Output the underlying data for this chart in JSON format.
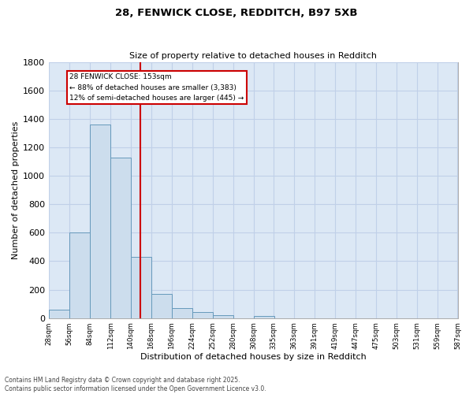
{
  "title1": "28, FENWICK CLOSE, REDDITCH, B97 5XB",
  "title2": "Size of property relative to detached houses in Redditch",
  "xlabel": "Distribution of detached houses by size in Redditch",
  "ylabel": "Number of detached properties",
  "bar_left_edges": [
    28,
    56,
    84,
    112,
    140,
    168,
    196,
    224,
    252,
    280,
    308,
    335,
    363,
    391,
    419,
    447,
    475,
    503,
    531,
    559
  ],
  "bar_heights": [
    60,
    600,
    1360,
    1130,
    430,
    170,
    70,
    40,
    20,
    0,
    15,
    0,
    0,
    0,
    0,
    0,
    0,
    0,
    0,
    0
  ],
  "bin_width": 28,
  "bar_color": "#ccdded",
  "bar_edge_color": "#6699bb",
  "vline_x": 153,
  "vline_color": "#cc0000",
  "ylim": [
    0,
    1800
  ],
  "yticks": [
    0,
    200,
    400,
    600,
    800,
    1000,
    1200,
    1400,
    1600,
    1800
  ],
  "xtick_labels": [
    "28sqm",
    "56sqm",
    "84sqm",
    "112sqm",
    "140sqm",
    "168sqm",
    "196sqm",
    "224sqm",
    "252sqm",
    "280sqm",
    "308sqm",
    "335sqm",
    "363sqm",
    "391sqm",
    "419sqm",
    "447sqm",
    "475sqm",
    "503sqm",
    "531sqm",
    "559sqm",
    "587sqm"
  ],
  "annotation_title": "28 FENWICK CLOSE: 153sqm",
  "annotation_line1": "← 88% of detached houses are smaller (3,383)",
  "annotation_line2": "12% of semi-detached houses are larger (445) →",
  "annotation_box_color": "#ffffff",
  "annotation_box_edge": "#cc0000",
  "grid_color": "#c0d0e8",
  "bg_color": "#dce8f5",
  "footer1": "Contains HM Land Registry data © Crown copyright and database right 2025.",
  "footer2": "Contains public sector information licensed under the Open Government Licence v3.0."
}
